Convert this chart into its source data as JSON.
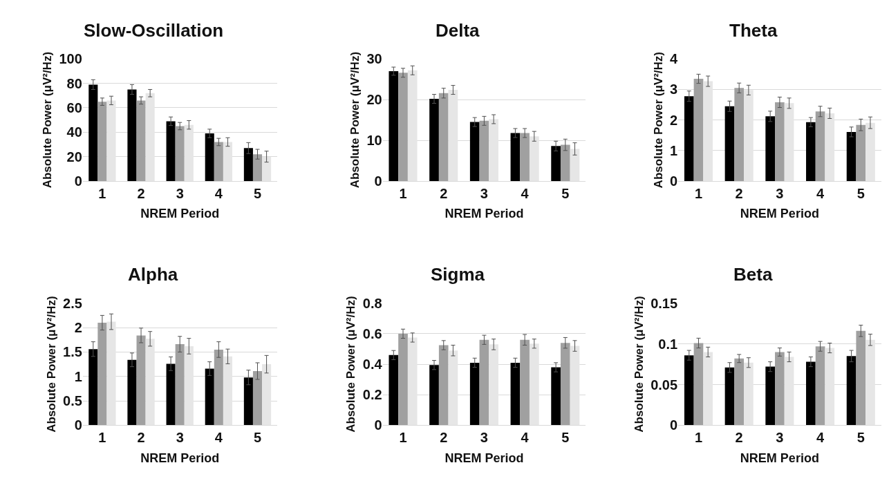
{
  "chart_data": [
    {
      "type": "bar",
      "title": "Slow-Oscillation",
      "xlabel": "NREM Period",
      "ylabel": "Absolute Power (μV²/Hz)",
      "categories": [
        "1",
        "2",
        "3",
        "4",
        "5"
      ],
      "ylim": [
        0,
        100
      ],
      "yticks": [
        0,
        20,
        40,
        60,
        80,
        100
      ],
      "grid": "y",
      "series": [
        {
          "color": "#000000",
          "values": [
            79,
            75,
            49,
            39,
            27
          ],
          "errors": [
            4,
            4,
            3.5,
            3.5,
            4.5
          ]
        },
        {
          "color": "#a0a0a0",
          "values": [
            65,
            66,
            45,
            32,
            22
          ],
          "errors": [
            3,
            3,
            3,
            3,
            4
          ]
        },
        {
          "color": "#e6e6e6",
          "values": [
            66,
            72,
            46,
            32,
            20
          ],
          "errors": [
            3.5,
            3,
            3.5,
            3.5,
            4.5
          ]
        }
      ]
    },
    {
      "type": "bar",
      "title": "Delta",
      "xlabel": "NREM Period",
      "ylabel": "Absolute Power (μV²/Hz)",
      "categories": [
        "1",
        "2",
        "3",
        "4",
        "5"
      ],
      "ylim": [
        0,
        30
      ],
      "yticks": [
        0,
        10,
        20,
        30
      ],
      "grid": "y",
      "series": [
        {
          "color": "#000000",
          "values": [
            27,
            20.2,
            14.5,
            11.8,
            8.6
          ],
          "errors": [
            1,
            1.1,
            1.1,
            1.1,
            1.2
          ]
        },
        {
          "color": "#a0a0a0",
          "values": [
            26.6,
            21.6,
            14.8,
            11.8,
            8.9
          ],
          "errors": [
            1.1,
            1.2,
            1.1,
            1.1,
            1.4
          ]
        },
        {
          "color": "#e6e6e6",
          "values": [
            27.2,
            22.4,
            15.2,
            11,
            7.9
          ],
          "errors": [
            1.1,
            1.1,
            1.1,
            1.2,
            1.5
          ]
        }
      ]
    },
    {
      "type": "bar",
      "title": "Theta",
      "xlabel": "NREM Period",
      "ylabel": "Absolute Power (μV²/Hz)",
      "categories": [
        "1",
        "2",
        "3",
        "4",
        "5"
      ],
      "ylim": [
        0,
        4
      ],
      "yticks": [
        0,
        1,
        2,
        3,
        4
      ],
      "grid": "y",
      "series": [
        {
          "color": "#000000",
          "values": [
            2.78,
            2.45,
            2.12,
            1.93,
            1.61
          ],
          "errors": [
            0.17,
            0.17,
            0.17,
            0.15,
            0.16
          ]
        },
        {
          "color": "#a0a0a0",
          "values": [
            3.35,
            3.05,
            2.58,
            2.28,
            1.84
          ],
          "errors": [
            0.15,
            0.16,
            0.17,
            0.17,
            0.19
          ]
        },
        {
          "color": "#e6e6e6",
          "values": [
            3.27,
            2.98,
            2.55,
            2.22,
            1.91
          ],
          "errors": [
            0.17,
            0.16,
            0.17,
            0.17,
            0.19
          ]
        }
      ]
    },
    {
      "type": "bar",
      "title": "Alpha",
      "xlabel": "NREM Period",
      "ylabel": "Absolute Power (μV²/Hz)",
      "categories": [
        "1",
        "2",
        "3",
        "4",
        "5"
      ],
      "ylim": [
        0,
        2.5
      ],
      "yticks": [
        0,
        0.5,
        1,
        1.5,
        2,
        2.5
      ],
      "grid": "y",
      "series": [
        {
          "color": "#000000",
          "values": [
            1.56,
            1.34,
            1.26,
            1.16,
            0.98
          ],
          "errors": [
            0.15,
            0.14,
            0.14,
            0.14,
            0.15
          ]
        },
        {
          "color": "#a0a0a0",
          "values": [
            2.1,
            1.84,
            1.66,
            1.55,
            1.11
          ],
          "errors": [
            0.15,
            0.15,
            0.16,
            0.16,
            0.17
          ]
        },
        {
          "color": "#e6e6e6",
          "values": [
            2.12,
            1.77,
            1.62,
            1.41,
            1.25
          ],
          "errors": [
            0.16,
            0.15,
            0.16,
            0.15,
            0.18
          ]
        }
      ]
    },
    {
      "type": "bar",
      "title": "Sigma",
      "xlabel": "NREM Period",
      "ylabel": "Absolute Power (μV²/Hz)",
      "categories": [
        "1",
        "2",
        "3",
        "4",
        "5"
      ],
      "ylim": [
        0,
        0.8
      ],
      "yticks": [
        0,
        0.2,
        0.4,
        0.6,
        0.8
      ],
      "grid": "y",
      "series": [
        {
          "color": "#000000",
          "values": [
            0.46,
            0.395,
            0.41,
            0.41,
            0.38
          ],
          "errors": [
            0.03,
            0.03,
            0.03,
            0.03,
            0.03
          ]
        },
        {
          "color": "#a0a0a0",
          "values": [
            0.6,
            0.525,
            0.56,
            0.56,
            0.54
          ],
          "errors": [
            0.03,
            0.03,
            0.03,
            0.035,
            0.035
          ]
        },
        {
          "color": "#e6e6e6",
          "values": [
            0.575,
            0.49,
            0.53,
            0.535,
            0.52
          ],
          "errors": [
            0.03,
            0.035,
            0.035,
            0.03,
            0.035
          ]
        }
      ]
    },
    {
      "type": "bar",
      "title": "Beta",
      "xlabel": "NREM Period",
      "ylabel": "Absolute Power (μV²/Hz)",
      "categories": [
        "1",
        "2",
        "3",
        "4",
        "5"
      ],
      "ylim": [
        0,
        0.15
      ],
      "yticks": [
        0,
        0.05,
        0.1,
        0.15
      ],
      "grid": "y",
      "series": [
        {
          "color": "#000000",
          "values": [
            0.086,
            0.071,
            0.072,
            0.078,
            0.085
          ],
          "errors": [
            0.006,
            0.006,
            0.006,
            0.006,
            0.007
          ]
        },
        {
          "color": "#a0a0a0",
          "values": [
            0.101,
            0.082,
            0.09,
            0.097,
            0.116
          ],
          "errors": [
            0.006,
            0.005,
            0.005,
            0.006,
            0.007
          ]
        },
        {
          "color": "#e6e6e6",
          "values": [
            0.09,
            0.077,
            0.084,
            0.095,
            0.105
          ],
          "errors": [
            0.006,
            0.006,
            0.006,
            0.006,
            0.007
          ]
        }
      ]
    }
  ]
}
